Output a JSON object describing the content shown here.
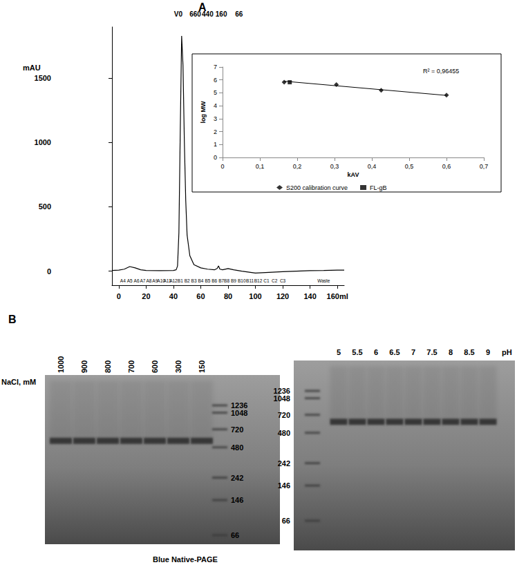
{
  "figure": {
    "panel_labels": [
      "A",
      "B"
    ],
    "caption": "Blue Native-PAGE"
  },
  "chart_data": [
    {
      "type": "line",
      "y_label": "mAU",
      "color": "#000000",
      "grid": false,
      "x": [
        -5,
        0,
        4,
        8,
        12,
        16,
        20,
        30,
        40,
        42,
        43,
        44,
        45,
        46,
        47,
        48,
        49,
        50,
        52,
        55,
        60,
        65,
        70,
        72,
        73,
        74,
        76,
        80,
        84,
        90,
        100,
        110,
        120,
        130,
        140,
        150,
        160,
        165
      ],
      "values": [
        5,
        8,
        15,
        35,
        25,
        10,
        5,
        3,
        5,
        10,
        40,
        300,
        1100,
        1830,
        1600,
        1000,
        550,
        280,
        120,
        50,
        25,
        15,
        10,
        20,
        40,
        15,
        10,
        20,
        10,
        0,
        -15,
        -10,
        -5,
        0,
        3,
        5,
        8,
        8
      ],
      "xlim": [
        -5,
        165
      ],
      "xticks": [
        0,
        20,
        40,
        60,
        80,
        100,
        120,
        140,
        {
          "value": 160,
          "label": "160ml"
        }
      ],
      "ylim": [
        -110,
        1900
      ],
      "yticks": [
        0,
        500,
        1000,
        1500
      ],
      "top_markers": {
        "labels": [
          "V0",
          "660",
          "440",
          "160",
          "66"
        ],
        "x": [
          43.5,
          56,
          65,
          75,
          88
        ]
      },
      "fractions": {
        "labels": [
          "A4",
          "A5",
          "A6",
          "A7",
          "A8",
          "A9",
          "A10",
          "A11",
          "A12",
          "B1",
          "B2",
          "B3",
          "B4",
          "B5",
          "B6",
          "B7",
          "B8",
          "B9",
          "B10",
          "B11",
          "B12",
          "C1",
          "C2",
          "C3",
          "Waste"
        ],
        "x": [
          3,
          8,
          13,
          17.5,
          22,
          26.5,
          31,
          35.5,
          40,
          45,
          50,
          55,
          60,
          65,
          70,
          75,
          79,
          84,
          90,
          96,
          102,
          108,
          114,
          120,
          150
        ]
      }
    },
    {
      "type": "scatter",
      "x_label": "kAV",
      "y_label": "log MW",
      "grid": false,
      "legend": "bottom",
      "xlim": [
        0,
        0.7
      ],
      "xticks": [
        0,
        {
          "value": 0.1,
          "label": "0,1"
        },
        {
          "value": 0.2,
          "label": "0,2"
        },
        {
          "value": 0.3,
          "label": "0,3"
        },
        {
          "value": 0.4,
          "label": "0,4"
        },
        {
          "value": 0.5,
          "label": "0,5"
        },
        {
          "value": 0.6,
          "label": "0,6"
        },
        {
          "value": 0.7,
          "label": "0,7"
        }
      ],
      "ylim": [
        0,
        7
      ],
      "yticks": [
        0,
        1,
        2,
        3,
        4,
        5,
        6,
        7
      ],
      "series": [
        {
          "name": "S200 calibration curve",
          "color": "#000000",
          "marker": "diamond",
          "x": [
            0.165,
            0.305,
            0.425,
            0.6
          ],
          "values": [
            5.82,
            5.64,
            5.2,
            4.82
          ]
        },
        {
          "name": "FL-gB",
          "color": "#000000",
          "marker": "square",
          "x": [
            0.18
          ],
          "values": [
            5.82
          ]
        },
        {
          "type": "line",
          "color": "#000000",
          "x": [
            0.165,
            0.6
          ],
          "values": [
            5.9,
            4.8
          ]
        }
      ],
      "annotations": [
        "R² = 0,96455"
      ]
    }
  ],
  "gels": [
    {
      "condition_label": "NaCl, mM",
      "lanes": [
        "1000",
        "900",
        "800",
        "700",
        "600",
        "300",
        "150"
      ],
      "ladder_kDa": [
        1236,
        1048,
        720,
        480,
        242,
        146,
        66
      ],
      "band_kDa": 560
    },
    {
      "condition_label": "pH",
      "lanes": [
        "5",
        "5.5",
        "6",
        "6.5",
        "7",
        "7.5",
        "8",
        "8.5",
        "9"
      ],
      "ladder_kDa": [
        1236,
        1048,
        720,
        480,
        242,
        146,
        66
      ],
      "band_kDa": 620
    }
  ]
}
